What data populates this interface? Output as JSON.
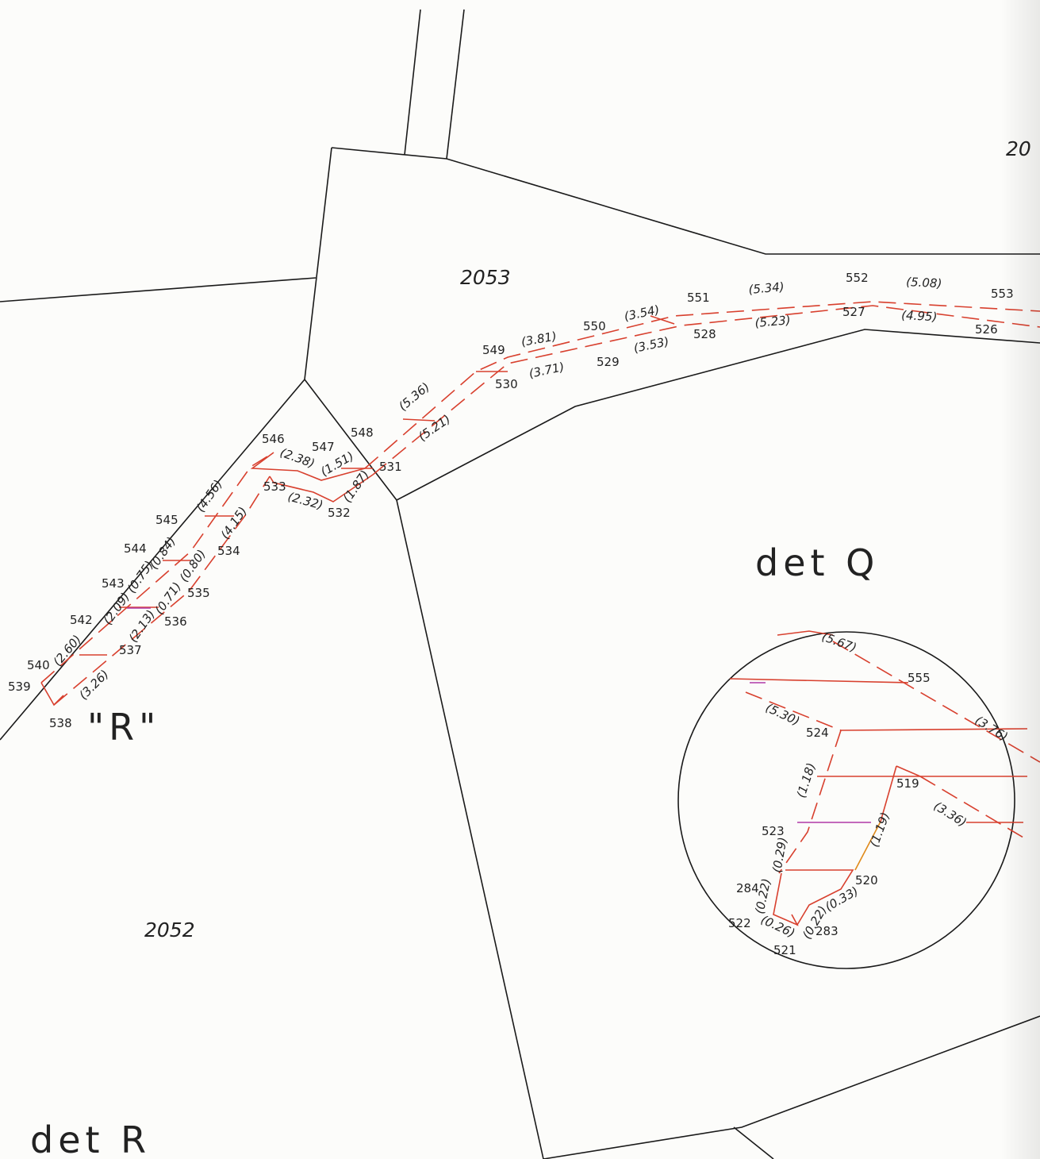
{
  "parcels": [
    "2053",
    "2052",
    "20"
  ],
  "details": {
    "q": "det  Q",
    "r": "det  R",
    "r_mark": "\"R\""
  },
  "points": [
    "540",
    "539",
    "538",
    "542",
    "543",
    "544",
    "545",
    "546",
    "547",
    "548",
    "533",
    "532",
    "531",
    "534",
    "535",
    "536",
    "537",
    "549",
    "550",
    "551",
    "552",
    "553",
    "530",
    "529",
    "528",
    "527",
    "526",
    "555",
    "524",
    "519",
    "523",
    "284",
    "522",
    "521",
    "283",
    "520"
  ],
  "dims": [
    "(2.60)",
    "(3.26)",
    "(2.09)",
    "(2.13)",
    "(0.75)",
    "(0.71)",
    "(0.84)",
    "(0.80)",
    "(4.56)",
    "(4.15)",
    "(2.38)",
    "(1.51)",
    "(2.32)",
    "(1.87)",
    "(5.36)",
    "(5.21)",
    "(3.81)",
    "(3.71)",
    "(3.54)",
    "(3.53)",
    "(5.34)",
    "(5.23)",
    "(5.08)",
    "(4.95)",
    "(5.67)",
    "(5.30)",
    "(3.76)",
    "(1.18)",
    "(3.36)",
    "(1.19)",
    "(0.29)",
    "(0.22)",
    "(0.26)",
    "(0.22)",
    "(0.33)"
  ]
}
